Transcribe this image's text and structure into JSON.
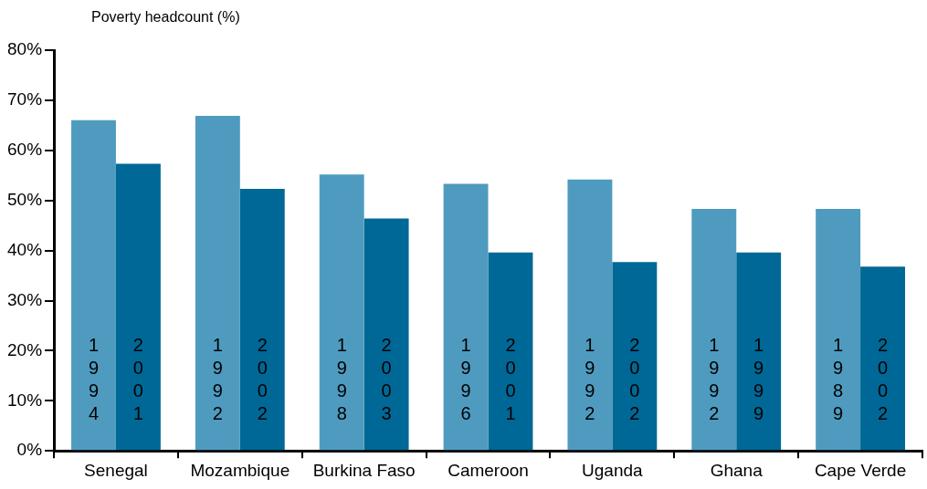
{
  "chart_data": {
    "type": "bar",
    "ylabel": "Poverty headcount (%)",
    "categories": [
      "Senegal",
      "Mozambique",
      "Burkina Faso",
      "Cameroon",
      "Uganda",
      "Ghana",
      "Cape Verde"
    ],
    "series": [
      {
        "color": "#4f9bc0",
        "values": [
          66.0,
          66.9,
          55.2,
          53.3,
          54.2,
          48.3,
          48.3
        ]
      },
      {
        "color": "#006896",
        "values": [
          57.3,
          52.3,
          46.4,
          39.6,
          37.7,
          39.6,
          36.8
        ]
      }
    ],
    "ylim": [
      0,
      80
    ],
    "yticks": [
      {
        "value": 0,
        "label": "0%"
      },
      {
        "value": 10,
        "label": "10%"
      },
      {
        "value": 20,
        "label": "20%"
      },
      {
        "value": 30,
        "label": "30%"
      },
      {
        "value": 40,
        "label": "40%"
      },
      {
        "value": 50,
        "label": "50%"
      },
      {
        "value": 60,
        "label": "60%"
      },
      {
        "value": 70,
        "label": "70%"
      },
      {
        "value": 80,
        "label": "80%"
      }
    ],
    "annotations": [
      "1994",
      "2001",
      "1992",
      "2002",
      "1998",
      "2003",
      "1996",
      "2001",
      "1992",
      "2002",
      "1992",
      "1999",
      "1989",
      "2002"
    ],
    "grid": false,
    "legend": false
  }
}
